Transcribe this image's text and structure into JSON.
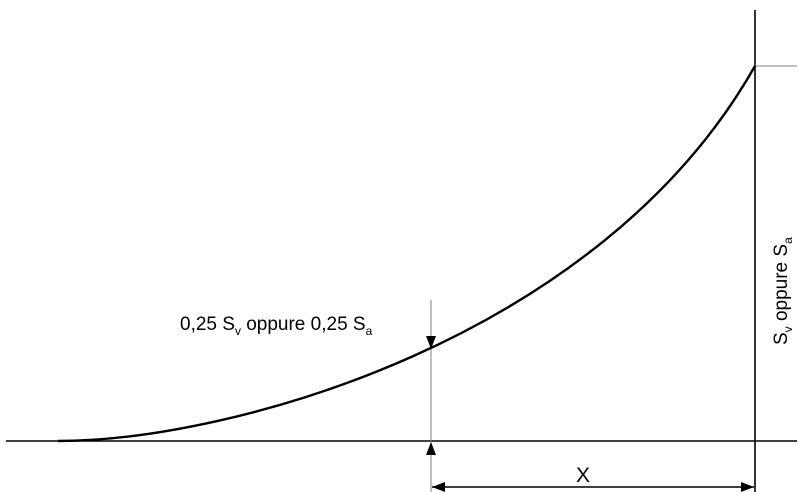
{
  "diagram": {
    "quarter_label": {
      "main1": "0,25 S",
      "sub1": "v",
      "mid": " oppure 0,25 S",
      "sub2": "a"
    },
    "full_label": {
      "main1": "S",
      "sub1": "v",
      "mid": " oppure S",
      "sub2": "a"
    },
    "x_label": "X"
  },
  "colors": {
    "curve": "#000000",
    "thin_line": "#808080",
    "axis": "#000000"
  }
}
